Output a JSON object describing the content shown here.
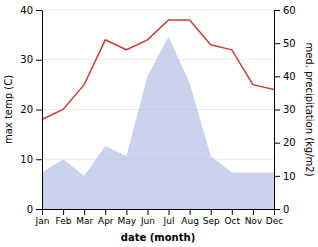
{
  "chart_data": {
    "type": "line",
    "categories": [
      "Jan",
      "Feb",
      "Mar",
      "Apr",
      "May",
      "Jun",
      "Jul",
      "Aug",
      "Sep",
      "Oct",
      "Nov",
      "Dec"
    ],
    "series": [
      {
        "type": "area",
        "color": "#b8c4e8",
        "axis": "y2",
        "values": [
          11,
          15,
          10,
          19,
          16,
          40,
          52,
          38,
          16,
          11,
          11,
          11
        ]
      },
      {
        "type": "line",
        "color": "#c8413a",
        "values": [
          18,
          20,
          25,
          34,
          32,
          34,
          38,
          38,
          33,
          32,
          25,
          24
        ]
      }
    ],
    "xlabel": "date (month)",
    "ylabel": "max temp (C)",
    "y2label": "med. precipitation (kg/m2)",
    "ylim": [
      0,
      40
    ],
    "yticks": [
      0,
      10,
      20,
      30,
      40
    ],
    "y2lim": [
      0,
      60
    ],
    "y2ticks": [
      0,
      10,
      20,
      30,
      40,
      50,
      60
    ],
    "grid": true
  }
}
